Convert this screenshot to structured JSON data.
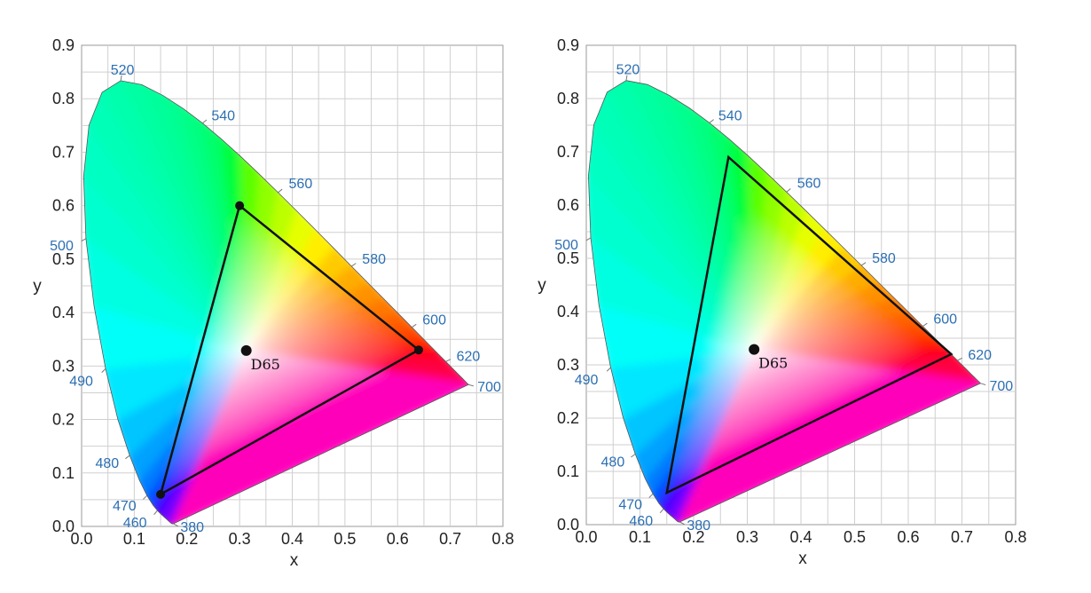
{
  "chart_data": [
    {
      "type": "scatter",
      "xlabel": "x",
      "ylabel": "y",
      "xlim": [
        0,
        0.8
      ],
      "ylim": [
        0,
        0.9
      ],
      "xticks": [
        "0.0",
        "0.1",
        "0.2",
        "0.3",
        "0.4",
        "0.5",
        "0.6",
        "0.7",
        "0.8"
      ],
      "yticks": [
        "0.0",
        "0.1",
        "0.2",
        "0.3",
        "0.4",
        "0.5",
        "0.6",
        "0.7",
        "0.8",
        "0.9"
      ],
      "grid": true,
      "spectral_locus": {
        "wavelengths": [
          "380",
          "460",
          "470",
          "480",
          "490",
          "500",
          "520",
          "540",
          "560",
          "580",
          "600",
          "620",
          "700"
        ],
        "points": [
          [
            0.1741,
            0.005
          ],
          [
            0.144,
            0.0297
          ],
          [
            0.1241,
            0.0578
          ],
          [
            0.0913,
            0.1327
          ],
          [
            0.0454,
            0.295
          ],
          [
            0.0082,
            0.5384
          ],
          [
            0.0743,
            0.8338
          ],
          [
            0.2296,
            0.7543
          ],
          [
            0.3731,
            0.6245
          ],
          [
            0.5125,
            0.4866
          ],
          [
            0.627,
            0.3725
          ],
          [
            0.6915,
            0.3083
          ],
          [
            0.7347,
            0.2653
          ]
        ]
      },
      "gamut_triangle": [
        [
          0.3,
          0.6
        ],
        [
          0.64,
          0.33
        ],
        [
          0.15,
          0.06
        ]
      ],
      "white_point": {
        "label": "D65",
        "x": 0.3127,
        "y": 0.329
      }
    },
    {
      "type": "scatter",
      "xlabel": "x",
      "ylabel": "y",
      "xlim": [
        0,
        0.8
      ],
      "ylim": [
        0,
        0.9
      ],
      "xticks": [
        "0.0",
        "0.1",
        "0.2",
        "0.3",
        "0.4",
        "0.5",
        "0.6",
        "0.7",
        "0.8"
      ],
      "yticks": [
        "0.0",
        "0.1",
        "0.2",
        "0.3",
        "0.4",
        "0.5",
        "0.6",
        "0.7",
        "0.8",
        "0.9"
      ],
      "grid": true,
      "spectral_locus": {
        "wavelengths": [
          "380",
          "460",
          "470",
          "480",
          "490",
          "500",
          "520",
          "540",
          "560",
          "580",
          "600",
          "620",
          "700"
        ],
        "points": [
          [
            0.1741,
            0.005
          ],
          [
            0.144,
            0.0297
          ],
          [
            0.1241,
            0.0578
          ],
          [
            0.0913,
            0.1327
          ],
          [
            0.0454,
            0.295
          ],
          [
            0.0082,
            0.5384
          ],
          [
            0.0743,
            0.8338
          ],
          [
            0.2296,
            0.7543
          ],
          [
            0.3731,
            0.6245
          ],
          [
            0.5125,
            0.4866
          ],
          [
            0.627,
            0.3725
          ],
          [
            0.6915,
            0.3083
          ],
          [
            0.7347,
            0.2653
          ]
        ]
      },
      "gamut_triangle": [
        [
          0.265,
          0.69
        ],
        [
          0.68,
          0.32
        ],
        [
          0.15,
          0.06
        ]
      ],
      "white_point": {
        "label": "D65",
        "x": 0.3127,
        "y": 0.329
      }
    }
  ]
}
